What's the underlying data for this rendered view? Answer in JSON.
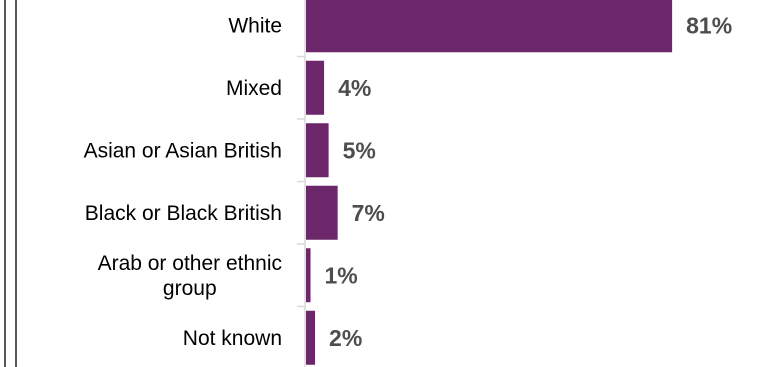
{
  "chart_data": {
    "type": "bar",
    "orientation": "horizontal",
    "categories": [
      [
        "White"
      ],
      [
        "Mixed"
      ],
      [
        "Asian or Asian British"
      ],
      [
        "Black or Black British"
      ],
      [
        "Arab or other ethnic",
        "group"
      ],
      [
        "Not known"
      ]
    ],
    "values": [
      81,
      4,
      5,
      7,
      1,
      2
    ],
    "value_labels": [
      "81%",
      "4%",
      "5%",
      "7%",
      "1%",
      "2%"
    ],
    "unit": "%",
    "xlim": [
      0,
      100
    ],
    "bar_color": "#6b2769",
    "label_color": "#4d4d4d",
    "title": "",
    "xlabel": "",
    "ylabel": "",
    "grid": false,
    "legend": "none"
  }
}
